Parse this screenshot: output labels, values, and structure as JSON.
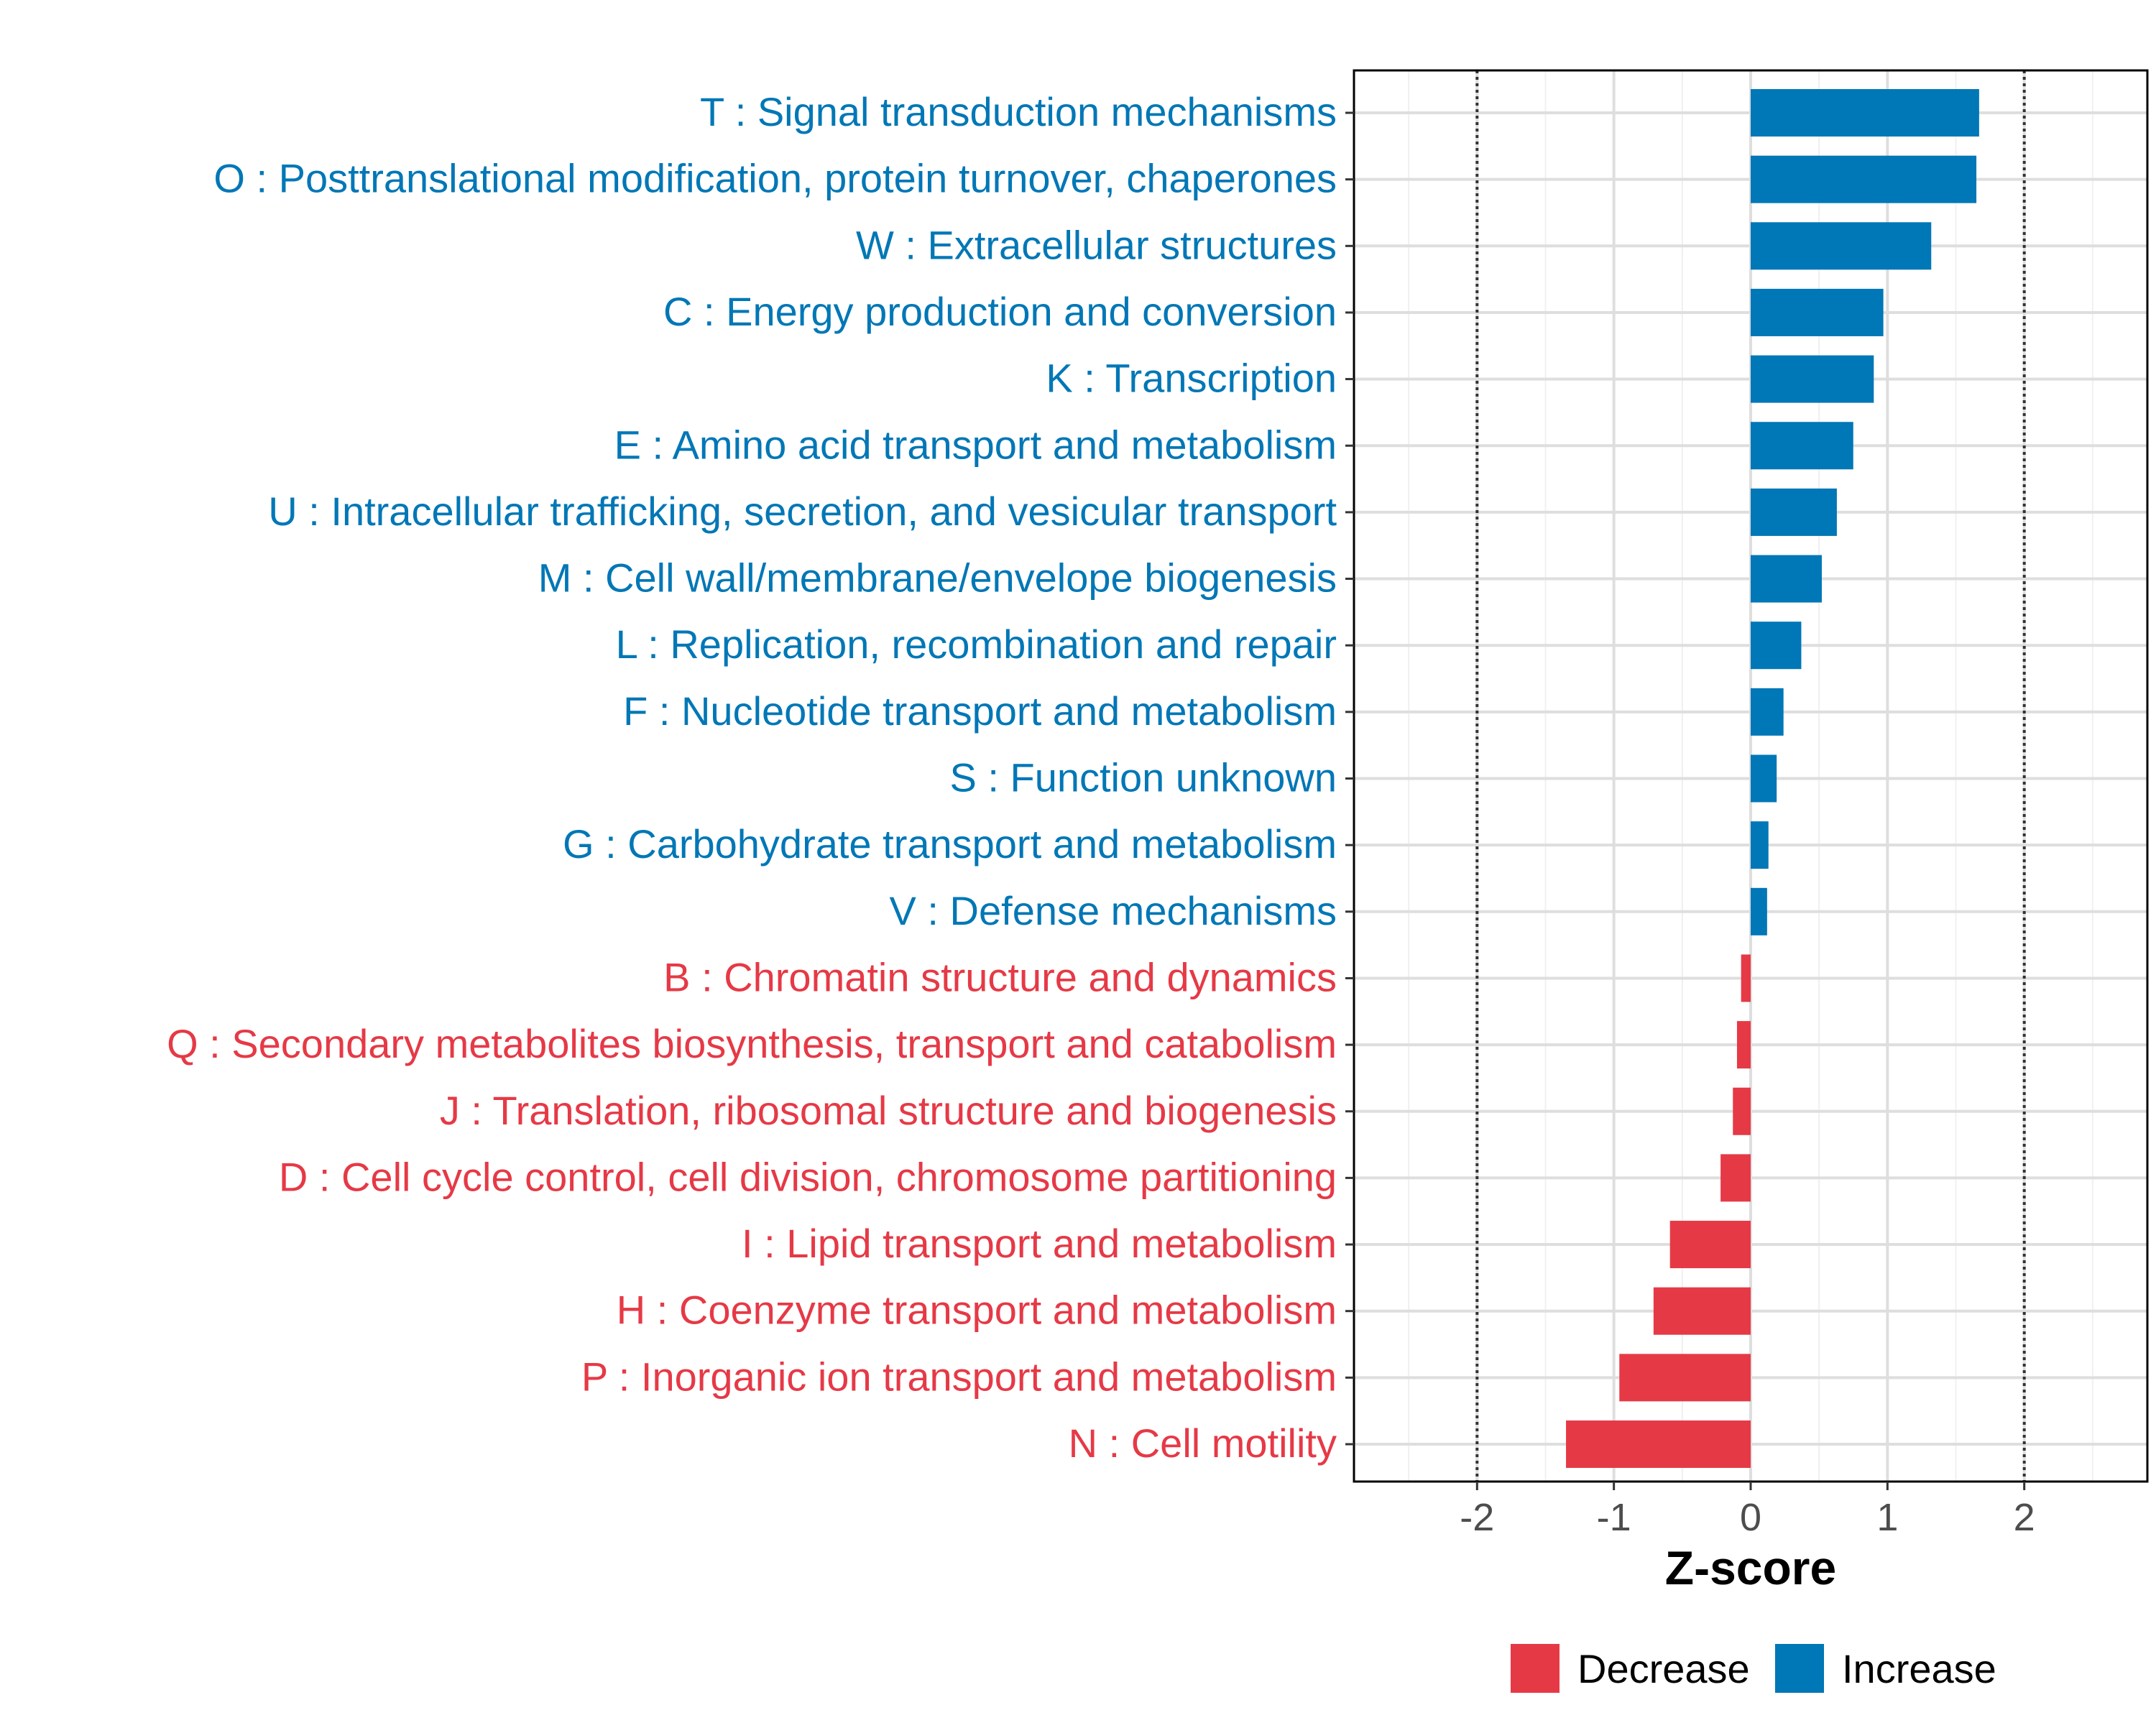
{
  "chart_data": {
    "type": "bar",
    "orientation": "horizontal",
    "xlabel": "Z-score",
    "ylabel": "",
    "xlim": [
      -2.9,
      2.9
    ],
    "xticks": [
      -2,
      -1,
      0,
      1,
      2
    ],
    "xtick_labels": [
      "-2",
      "-1",
      "0",
      "1",
      "2"
    ],
    "reference_lines": [
      -2,
      2
    ],
    "grid": true,
    "legend_position": "bottom",
    "colors": {
      "Decrease": "#e63946",
      "Increase": "#0077b6"
    },
    "legend": [
      {
        "label": "Decrease",
        "color": "#e63946"
      },
      {
        "label": "Increase",
        "color": "#0077b6"
      }
    ],
    "categories": [
      "T : Signal transduction mechanisms",
      "O : Posttranslational modification, protein turnover, chaperones",
      "W : Extracellular structures",
      "C : Energy production and conversion",
      "K : Transcription",
      "E : Amino acid transport and metabolism",
      "U : Intracellular trafficking, secretion, and vesicular transport",
      "M : Cell wall/membrane/envelope biogenesis",
      "L : Replication, recombination and repair",
      "F : Nucleotide transport and metabolism",
      "S : Function unknown",
      "G : Carbohydrate transport and metabolism",
      "V : Defense mechanisms",
      "B : Chromatin structure and dynamics",
      "Q : Secondary metabolites biosynthesis, transport and catabolism",
      "J : Translation, ribosomal structure and biogenesis",
      "D : Cell cycle control, cell division, chromosome partitioning",
      "I : Lipid transport and metabolism",
      "H : Coenzyme transport and metabolism",
      "P : Inorganic ion transport and metabolism",
      "N : Cell motility"
    ],
    "values": [
      1.67,
      1.65,
      1.32,
      0.97,
      0.9,
      0.75,
      0.63,
      0.52,
      0.37,
      0.24,
      0.19,
      0.13,
      0.12,
      -0.07,
      -0.1,
      -0.13,
      -0.22,
      -0.59,
      -0.71,
      -0.96,
      -1.35
    ],
    "groups": [
      "Increase",
      "Increase",
      "Increase",
      "Increase",
      "Increase",
      "Increase",
      "Increase",
      "Increase",
      "Increase",
      "Increase",
      "Increase",
      "Increase",
      "Increase",
      "Decrease",
      "Decrease",
      "Decrease",
      "Decrease",
      "Decrease",
      "Decrease",
      "Decrease",
      "Decrease"
    ]
  }
}
